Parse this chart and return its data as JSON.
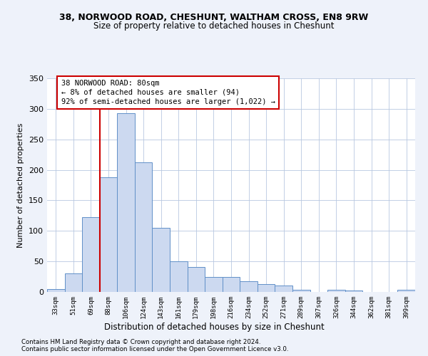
{
  "title_line1": "38, NORWOOD ROAD, CHESHUNT, WALTHAM CROSS, EN8 9RW",
  "title_line2": "Size of property relative to detached houses in Cheshunt",
  "xlabel": "Distribution of detached houses by size in Cheshunt",
  "ylabel": "Number of detached properties",
  "categories": [
    "33sqm",
    "51sqm",
    "69sqm",
    "88sqm",
    "106sqm",
    "124sqm",
    "143sqm",
    "161sqm",
    "179sqm",
    "198sqm",
    "216sqm",
    "234sqm",
    "252sqm",
    "271sqm",
    "289sqm",
    "307sqm",
    "326sqm",
    "344sqm",
    "362sqm",
    "381sqm",
    "399sqm"
  ],
  "values": [
    5,
    30,
    122,
    188,
    293,
    212,
    105,
    50,
    41,
    25,
    24,
    17,
    13,
    10,
    4,
    0,
    3,
    2,
    0,
    0,
    4
  ],
  "bar_color": "#ccd9f0",
  "bar_edge_color": "#6090c8",
  "vline_color": "#cc0000",
  "vline_pos": 2.5,
  "annotation_lines": [
    "38 NORWOOD ROAD: 80sqm",
    "← 8% of detached houses are smaller (94)",
    "92% of semi-detached houses are larger (1,022) →"
  ],
  "annotation_box_color": "#cc0000",
  "ylim": [
    0,
    350
  ],
  "yticks": [
    0,
    50,
    100,
    150,
    200,
    250,
    300,
    350
  ],
  "footnote1": "Contains HM Land Registry data © Crown copyright and database right 2024.",
  "footnote2": "Contains public sector information licensed under the Open Government Licence v3.0.",
  "bg_color": "#eef2fa",
  "plot_bg_color": "#ffffff"
}
